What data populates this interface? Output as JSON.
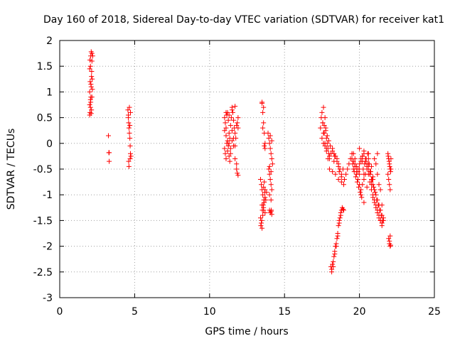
{
  "chart_data": {
    "type": "scatter",
    "title": "Day 160 of 2018, Sidereal Day-to-day VTEC variation (SDTVAR) for receiver kat1",
    "xlabel": "GPS time / hours",
    "ylabel": "SDTVAR / TECUs",
    "xlim": [
      0,
      25
    ],
    "ylim": [
      -3,
      2
    ],
    "xticks": [
      0,
      5,
      10,
      15,
      20,
      25
    ],
    "yticks": [
      -3,
      -2.5,
      -2,
      -1.5,
      -1,
      -0.5,
      0,
      0.5,
      1,
      1.5,
      2
    ],
    "grid": true,
    "marker": "+",
    "color": "#ff0000",
    "series": [
      {
        "name": "kat1",
        "x": [
          2.0,
          2.0,
          2.0,
          2.02,
          2.03,
          2.05,
          2.05,
          2.07,
          2.07,
          2.08,
          2.1,
          2.1,
          2.12,
          2.12,
          2.13,
          2.15,
          2.15,
          2.15,
          2.17,
          2.18,
          2.2,
          2.0,
          2.02,
          2.05,
          2.08,
          2.1,
          3.25,
          3.3,
          3.3,
          3.28,
          4.55,
          4.58,
          4.6,
          4.62,
          4.65,
          4.65,
          4.68,
          4.7,
          4.72,
          4.72,
          4.75,
          4.6,
          4.62,
          4.68,
          4.7,
          4.58,
          11.0,
          11.05,
          11.1,
          11.15,
          11.2,
          11.25,
          11.3,
          11.35,
          11.4,
          11.45,
          11.5,
          11.55,
          11.6,
          11.65,
          11.7,
          11.75,
          11.8,
          11.85,
          11.9,
          11.0,
          11.05,
          11.1,
          11.15,
          11.2,
          11.25,
          11.3,
          11.35,
          11.4,
          11.5,
          11.6,
          11.7,
          11.8,
          11.0,
          11.1,
          11.2,
          11.3,
          11.4,
          11.5,
          11.6,
          11.7,
          11.8,
          11.85,
          11.9,
          11.1,
          11.3,
          11.5,
          11.7,
          11.9,
          13.4,
          13.45,
          13.5,
          13.55,
          13.6,
          13.65,
          13.7,
          13.5,
          13.6,
          13.7,
          13.75,
          13.8,
          13.4,
          13.45,
          13.5,
          13.55,
          13.6,
          13.65,
          13.7,
          13.5,
          13.55,
          13.6,
          13.65,
          13.7,
          13.5,
          13.6,
          13.55,
          13.65,
          13.7,
          13.42,
          13.48,
          13.52,
          13.58,
          13.62,
          13.68,
          13.9,
          13.95,
          14.0,
          14.05,
          14.1,
          14.15,
          14.2,
          13.95,
          14.0,
          14.05,
          14.1,
          14.15,
          14.0,
          14.05,
          14.1,
          14.15,
          14.0,
          14.1,
          14.05,
          14.15,
          14.0,
          14.1,
          14.12,
          17.4,
          17.45,
          17.5,
          17.55,
          17.6,
          17.65,
          17.7,
          17.75,
          17.8,
          17.85,
          17.9,
          17.95,
          18.0,
          18.1,
          18.2,
          18.3,
          18.4,
          18.5,
          18.6,
          18.7,
          18.8,
          18.9,
          17.5,
          17.6,
          17.7,
          17.8,
          17.9,
          18.0,
          18.2,
          18.4,
          18.6,
          18.8,
          17.6,
          17.7,
          17.8,
          18.0,
          18.3,
          18.6,
          17.55,
          17.65,
          17.75,
          17.85,
          17.95,
          18.05,
          18.2,
          18.35,
          18.5,
          18.65,
          18.8,
          18.95,
          19.0,
          19.1,
          19.2,
          19.3,
          19.4,
          19.5,
          19.6,
          19.7,
          19.8,
          19.9,
          20.0,
          20.1,
          20.2,
          20.3,
          20.4,
          20.5,
          20.6,
          20.7,
          20.8,
          20.9,
          21.0,
          21.1,
          21.2,
          21.3,
          21.4,
          21.5,
          21.6,
          19.5,
          19.6,
          19.7,
          19.8,
          19.9,
          20.0,
          20.1,
          20.2,
          20.3,
          20.4,
          20.5,
          20.6,
          20.7,
          20.8,
          20.9,
          21.0,
          21.1,
          21.2,
          21.3,
          21.4,
          21.5,
          19.6,
          19.7,
          19.8,
          19.9,
          20.0,
          20.1,
          20.2,
          20.3,
          20.4,
          20.5,
          20.6,
          20.7,
          20.8,
          20.9,
          21.0,
          21.1,
          21.2,
          21.3,
          21.4,
          21.5,
          21.6,
          19.55,
          19.65,
          19.75,
          19.85,
          19.95,
          20.05,
          20.15,
          20.25,
          20.35,
          20.45,
          20.55,
          20.65,
          20.75,
          20.85,
          20.95,
          21.05,
          21.15,
          21.25,
          21.35,
          21.45,
          21.55,
          20.0,
          20.2,
          20.4,
          20.6,
          20.8,
          21.0,
          21.2,
          21.4,
          20.1,
          20.3,
          20.5,
          20.7,
          20.9,
          21.1,
          21.3,
          21.5,
          20.0,
          20.3,
          20.6,
          20.9,
          21.2,
          18.1,
          18.15,
          18.2,
          18.25,
          18.3,
          18.35,
          18.4,
          18.45,
          18.5,
          18.55,
          18.6,
          18.65,
          18.7,
          18.75,
          18.8,
          18.85,
          18.9,
          18.95,
          18.15,
          18.25,
          18.35,
          18.45,
          18.55,
          18.65,
          18.75,
          21.9,
          21.95,
          22.0,
          22.05,
          22.1,
          21.9,
          21.95,
          22.0,
          22.05,
          22.1,
          21.92,
          21.98,
          22.02,
          22.08,
          21.95,
          22.0,
          22.05,
          22.0,
          22.05,
          22.08
        ],
        "y": [
          0.55,
          0.75,
          1.0,
          0.6,
          1.2,
          0.7,
          1.5,
          0.8,
          1.7,
          0.9,
          1.1,
          1.78,
          1.3,
          0.65,
          1.4,
          1.6,
          1.75,
          0.9,
          1.25,
          1.05,
          1.7,
          1.45,
          1.62,
          0.85,
          1.15,
          0.58,
          0.15,
          -0.18,
          -0.35,
          -0.18,
          0.65,
          0.5,
          0.4,
          0.3,
          0.2,
          0.7,
          0.1,
          -0.05,
          -0.2,
          0.6,
          -0.25,
          -0.35,
          -0.45,
          0.35,
          -0.3,
          0.55,
          0.5,
          0.4,
          0.3,
          0.55,
          0.6,
          0.45,
          0.2,
          0.1,
          0.35,
          0.5,
          0.65,
          0.6,
          0.45,
          0.3,
          0.2,
          0.1,
          0.35,
          0.4,
          0.5,
          -0.1,
          -0.2,
          -0.3,
          0.0,
          -0.15,
          -0.05,
          -0.25,
          -0.35,
          -0.2,
          0.05,
          -0.05,
          -0.3,
          -0.4,
          0.25,
          0.15,
          0.05,
          0.0,
          -0.1,
          0.25,
          0.1,
          -0.05,
          -0.5,
          -0.58,
          -0.62,
          0.6,
          0.55,
          0.7,
          0.72,
          0.3,
          -0.7,
          -0.8,
          -0.9,
          -1.0,
          -0.85,
          -0.75,
          -0.9,
          -1.2,
          -1.3,
          -1.35,
          -1.1,
          -0.95,
          -1.45,
          -1.55,
          -1.65,
          -1.4,
          -1.25,
          -1.15,
          -1.05,
          0.8,
          0.6,
          0.4,
          0.2,
          0.0,
          0.78,
          0.7,
          0.3,
          -0.05,
          -0.1,
          -1.6,
          -1.5,
          -1.3,
          -1.2,
          -1.1,
          -0.95,
          0.2,
          0.1,
          0.0,
          -0.1,
          -0.2,
          -0.3,
          -0.4,
          -0.5,
          -0.6,
          -0.7,
          -0.8,
          -0.9,
          -1.3,
          -1.35,
          -1.32,
          -1.38,
          -1.0,
          -1.1,
          0.15,
          0.05,
          -0.45,
          -0.55,
          -1.3,
          0.3,
          0.5,
          0.6,
          0.4,
          0.7,
          0.2,
          0.5,
          0.3,
          0.1,
          0.0,
          -0.1,
          -0.2,
          -0.3,
          -0.2,
          -0.1,
          -0.2,
          -0.25,
          -0.3,
          -0.4,
          -0.5,
          -0.6,
          -0.5,
          0.1,
          0.2,
          0.0,
          -0.1,
          -0.3,
          -0.5,
          -0.55,
          -0.6,
          -0.7,
          -0.75,
          0.0,
          -0.05,
          -0.15,
          -0.25,
          -0.35,
          -0.45,
          0.4,
          0.35,
          0.25,
          0.15,
          0.05,
          -0.05,
          -0.15,
          -0.25,
          -0.35,
          -0.55,
          -0.65,
          -0.8,
          -0.7,
          -0.6,
          -0.5,
          -0.4,
          -0.3,
          -0.2,
          -0.35,
          -0.45,
          -0.55,
          -0.5,
          -0.4,
          -0.3,
          -0.35,
          -0.2,
          -0.3,
          -0.4,
          -0.5,
          -0.6,
          -0.7,
          -0.8,
          -0.9,
          -1.0,
          -1.1,
          -1.2,
          -1.3,
          -1.4,
          -1.45,
          -0.3,
          -0.5,
          -0.4,
          -0.6,
          -0.7,
          -0.8,
          -0.9,
          -0.8,
          -0.7,
          -0.6,
          -0.5,
          -0.4,
          -0.6,
          -0.8,
          -1.0,
          -1.1,
          -1.2,
          -1.3,
          -1.4,
          -1.5,
          -1.55,
          -0.2,
          -0.3,
          -0.45,
          -0.55,
          -0.6,
          -0.35,
          -0.25,
          -0.15,
          -0.3,
          -0.45,
          -0.6,
          -0.75,
          -0.9,
          -1.05,
          -1.15,
          -1.25,
          -1.35,
          -1.45,
          -1.5,
          -1.6,
          -1.5,
          -0.4,
          -0.55,
          -0.65,
          -0.75,
          -0.85,
          -0.95,
          -1.05,
          -0.5,
          -0.4,
          -0.3,
          -0.2,
          -0.4,
          -0.55,
          -0.7,
          -0.85,
          -0.95,
          -1.1,
          -1.2,
          -1.3,
          -1.4,
          -1.5,
          -0.1,
          -0.25,
          -0.35,
          -0.2,
          -0.45,
          -0.3,
          -0.6,
          -0.9,
          -1.0,
          -1.15,
          -0.85,
          -0.55,
          -0.65,
          -0.4,
          -0.8,
          -1.2,
          -0.5,
          -0.6,
          -0.3,
          -0.7,
          -0.2,
          -2.4,
          -2.45,
          -2.35,
          -2.3,
          -2.2,
          -2.1,
          -2.0,
          -1.95,
          -1.85,
          -1.75,
          -1.6,
          -1.5,
          -1.45,
          -1.35,
          -1.3,
          -1.25,
          -1.28,
          -1.3,
          -2.5,
          -2.4,
          -2.15,
          -2.0,
          -1.8,
          -1.55,
          -1.4,
          -0.2,
          -0.3,
          -0.4,
          -0.5,
          -0.3,
          -0.6,
          -0.7,
          -0.8,
          -0.9,
          -0.5,
          -0.25,
          -0.35,
          -0.45,
          -0.55,
          -1.85,
          -1.95,
          -2.0,
          -1.9,
          -1.8,
          -1.98
        ]
      }
    ]
  }
}
